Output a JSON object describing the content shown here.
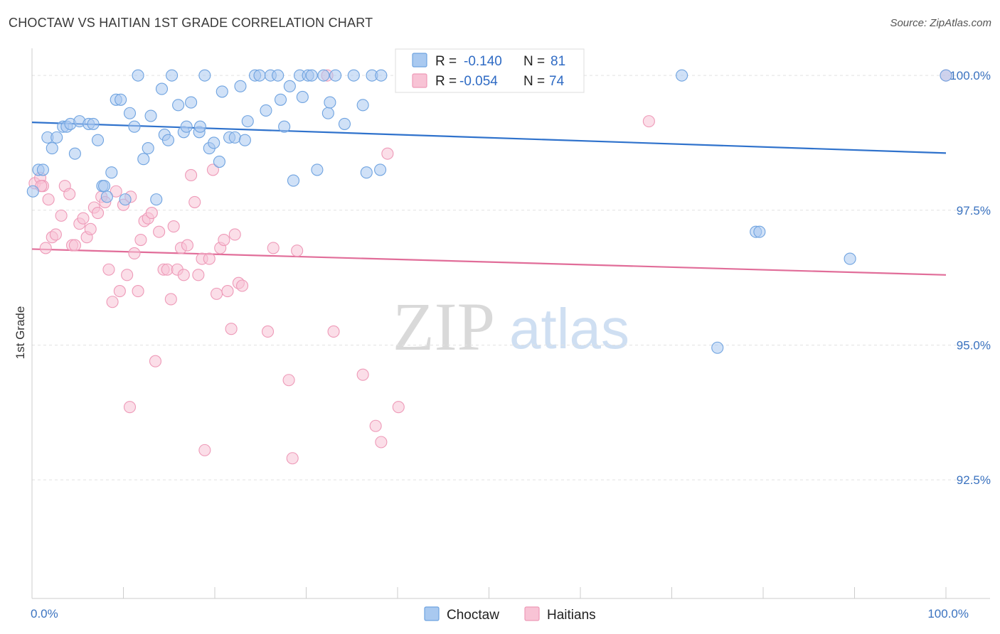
{
  "header": {
    "title": "CHOCTAW VS HAITIAN 1ST GRADE CORRELATION CHART",
    "source": "Source: ZipAtlas.com"
  },
  "watermark": {
    "part1": "ZIP",
    "part2": "atlas"
  },
  "chart_data": {
    "type": "scatter",
    "title": "CHOCTAW VS HAITIAN 1ST GRADE CORRELATION CHART",
    "xlabel": "",
    "ylabel": "1st Grade",
    "xlim": [
      0,
      100
    ],
    "ylim": [
      90.3,
      100.45
    ],
    "x_tick_labels": [
      {
        "value": 0,
        "label": "0.0%"
      },
      {
        "value": 100,
        "label": "100.0%"
      }
    ],
    "y_tick_labels": [
      {
        "value": 100,
        "label": "100.0%"
      },
      {
        "value": 97.5,
        "label": "97.5%"
      },
      {
        "value": 95,
        "label": "95.0%"
      },
      {
        "value": 92.5,
        "label": "92.5%"
      }
    ],
    "grid": true,
    "legend_position": "bottom-center",
    "stats_box": [
      {
        "series": "Choctaw",
        "r_label": "R =",
        "r_value": "-0.140",
        "n_label": "N =",
        "n_value": "81"
      },
      {
        "series": "Haitians",
        "r_label": "R =",
        "r_value": "-0.054",
        "n_label": "N =",
        "n_value": "74"
      }
    ],
    "series": [
      {
        "name": "Choctaw",
        "color": "#6fa3e0",
        "fill": "#a9c9f0",
        "line_color": "#2f72cc",
        "trend": {
          "x": [
            0,
            100
          ],
          "y": [
            99.13,
            98.56
          ]
        },
        "points": [
          [
            0.1,
            97.85
          ],
          [
            0.7,
            98.25
          ],
          [
            1.2,
            98.25
          ],
          [
            1.7,
            98.85
          ],
          [
            2.2,
            98.65
          ],
          [
            2.7,
            98.85
          ],
          [
            3.4,
            99.05
          ],
          [
            3.8,
            99.05
          ],
          [
            4.2,
            99.1
          ],
          [
            4.7,
            98.55
          ],
          [
            5.2,
            99.15
          ],
          [
            6.2,
            99.1
          ],
          [
            6.7,
            99.1
          ],
          [
            7.2,
            98.8
          ],
          [
            7.7,
            97.95
          ],
          [
            7.9,
            97.95
          ],
          [
            8.2,
            97.75
          ],
          [
            8.7,
            98.2
          ],
          [
            9.2,
            99.55
          ],
          [
            9.7,
            99.55
          ],
          [
            10.2,
            97.7
          ],
          [
            10.7,
            99.3
          ],
          [
            11.2,
            99.05
          ],
          [
            11.6,
            100.0
          ],
          [
            12.2,
            98.45
          ],
          [
            12.7,
            98.65
          ],
          [
            13.0,
            99.25
          ],
          [
            13.6,
            97.7
          ],
          [
            14.2,
            99.75
          ],
          [
            14.5,
            98.9
          ],
          [
            14.9,
            98.8
          ],
          [
            15.3,
            100.0
          ],
          [
            16.0,
            99.45
          ],
          [
            16.6,
            98.95
          ],
          [
            16.9,
            99.05
          ],
          [
            17.4,
            99.5
          ],
          [
            18.3,
            98.95
          ],
          [
            18.4,
            99.05
          ],
          [
            18.9,
            100.0
          ],
          [
            19.4,
            98.65
          ],
          [
            19.9,
            98.75
          ],
          [
            20.5,
            98.4
          ],
          [
            20.8,
            99.7
          ],
          [
            21.6,
            98.85
          ],
          [
            22.2,
            98.85
          ],
          [
            22.8,
            99.8
          ],
          [
            23.3,
            98.8
          ],
          [
            23.6,
            99.15
          ],
          [
            24.4,
            100.0
          ],
          [
            24.9,
            100.0
          ],
          [
            25.6,
            99.35
          ],
          [
            26.1,
            100.0
          ],
          [
            26.9,
            100.0
          ],
          [
            27.2,
            99.55
          ],
          [
            27.6,
            99.05
          ],
          [
            28.2,
            99.8
          ],
          [
            28.6,
            98.05
          ],
          [
            29.3,
            100.0
          ],
          [
            29.6,
            99.6
          ],
          [
            30.2,
            100.0
          ],
          [
            30.6,
            100.0
          ],
          [
            31.2,
            98.25
          ],
          [
            31.9,
            100.0
          ],
          [
            32.4,
            99.3
          ],
          [
            32.6,
            99.5
          ],
          [
            33.2,
            100.0
          ],
          [
            34.2,
            99.1
          ],
          [
            35.2,
            100.0
          ],
          [
            36.2,
            99.45
          ],
          [
            36.6,
            98.2
          ],
          [
            37.2,
            100.0
          ],
          [
            38.1,
            98.25
          ],
          [
            38.2,
            100.0
          ],
          [
            75.0,
            94.95
          ],
          [
            79.2,
            97.1
          ],
          [
            79.6,
            97.1
          ],
          [
            89.5,
            96.6
          ],
          [
            71.1,
            100.0
          ],
          [
            100.0,
            100.0
          ],
          [
            45.5,
            100.0
          ],
          [
            44.8,
            100.0
          ]
        ]
      },
      {
        "name": "Haitians",
        "color": "#ee9ab8",
        "fill": "#f8c3d5",
        "line_color": "#e16d99",
        "trend": {
          "x": [
            0,
            100
          ],
          "y": [
            96.78,
            96.3
          ]
        },
        "points": [
          [
            0.3,
            98.0
          ],
          [
            0.9,
            98.1
          ],
          [
            1.2,
            97.95
          ],
          [
            1.5,
            96.8
          ],
          [
            1.8,
            97.7
          ],
          [
            2.2,
            97.0
          ],
          [
            2.6,
            97.05
          ],
          [
            3.2,
            97.4
          ],
          [
            3.6,
            97.95
          ],
          [
            4.1,
            97.8
          ],
          [
            4.4,
            96.85
          ],
          [
            4.7,
            96.85
          ],
          [
            5.2,
            97.25
          ],
          [
            5.6,
            97.35
          ],
          [
            6.0,
            97.0
          ],
          [
            6.4,
            97.15
          ],
          [
            6.8,
            97.55
          ],
          [
            7.2,
            97.45
          ],
          [
            7.6,
            97.75
          ],
          [
            8.0,
            97.65
          ],
          [
            8.4,
            96.4
          ],
          [
            8.8,
            95.8
          ],
          [
            9.2,
            97.85
          ],
          [
            9.6,
            96.0
          ],
          [
            10.0,
            97.6
          ],
          [
            10.4,
            96.3
          ],
          [
            10.8,
            97.75
          ],
          [
            11.2,
            96.7
          ],
          [
            11.6,
            96.0
          ],
          [
            11.9,
            96.95
          ],
          [
            12.3,
            97.3
          ],
          [
            12.7,
            97.35
          ],
          [
            13.1,
            97.45
          ],
          [
            13.5,
            94.7
          ],
          [
            13.9,
            97.1
          ],
          [
            14.4,
            96.4
          ],
          [
            14.8,
            96.4
          ],
          [
            15.2,
            95.85
          ],
          [
            15.5,
            97.2
          ],
          [
            15.9,
            96.4
          ],
          [
            16.3,
            96.8
          ],
          [
            16.6,
            96.3
          ],
          [
            17.0,
            96.85
          ],
          [
            17.4,
            98.15
          ],
          [
            17.8,
            97.65
          ],
          [
            18.2,
            96.3
          ],
          [
            18.6,
            96.6
          ],
          [
            18.9,
            93.05
          ],
          [
            19.4,
            96.6
          ],
          [
            19.8,
            98.25
          ],
          [
            20.2,
            95.95
          ],
          [
            20.6,
            96.8
          ],
          [
            21.0,
            96.95
          ],
          [
            21.4,
            96.0
          ],
          [
            21.8,
            95.3
          ],
          [
            22.2,
            97.05
          ],
          [
            22.6,
            96.15
          ],
          [
            23.0,
            96.1
          ],
          [
            25.8,
            95.25
          ],
          [
            26.4,
            96.8
          ],
          [
            28.1,
            94.35
          ],
          [
            28.5,
            92.9
          ],
          [
            29.0,
            96.75
          ],
          [
            32.3,
            100.0
          ],
          [
            33.0,
            95.25
          ],
          [
            36.2,
            94.45
          ],
          [
            37.6,
            93.5
          ],
          [
            38.2,
            93.2
          ],
          [
            38.9,
            98.55
          ],
          [
            40.1,
            93.85
          ],
          [
            10.7,
            93.85
          ],
          [
            67.5,
            99.15
          ],
          [
            100.0,
            100.0
          ],
          [
            1.0,
            97.95
          ]
        ]
      }
    ]
  }
}
